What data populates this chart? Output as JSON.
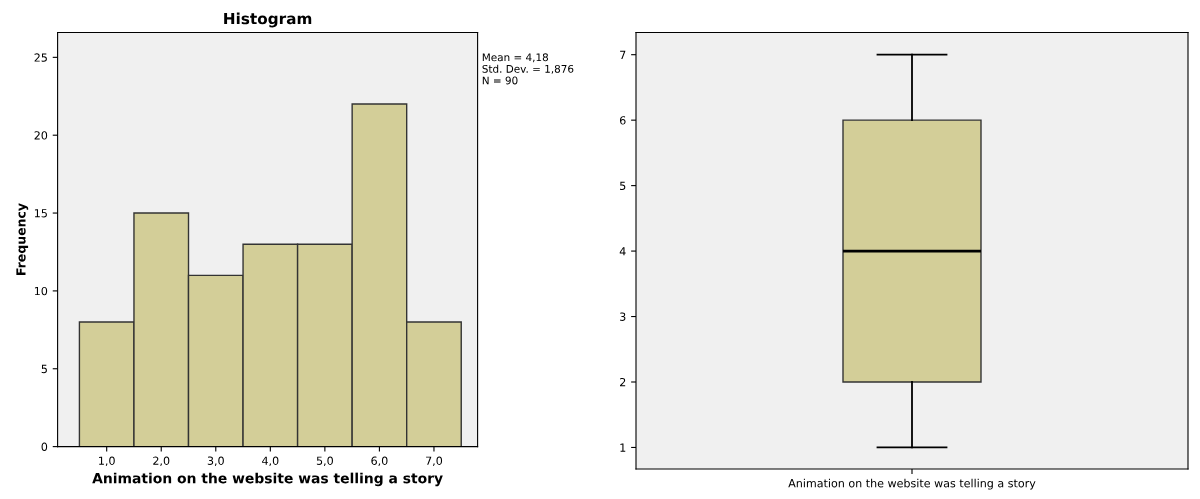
{
  "chart_data": [
    {
      "type": "histogram",
      "title": "Histogram",
      "xlabel": "Animation on the website was telling a story",
      "ylabel": "Frequency",
      "bins": [
        0.5,
        1.5,
        2.5,
        3.5,
        4.5,
        5.5,
        6.5,
        7.5
      ],
      "values": [
        8,
        15,
        11,
        13,
        13,
        22,
        8
      ],
      "color": "#d3ce98",
      "xlim": [
        0.1,
        7.8
      ],
      "xticks": [
        {
          "value": 1,
          "label": "1,0"
        },
        {
          "value": 2,
          "label": "2,0"
        },
        {
          "value": 3,
          "label": "3,0"
        },
        {
          "value": 4,
          "label": "4,0"
        },
        {
          "value": 5,
          "label": "5,0"
        },
        {
          "value": 6,
          "label": "6,0"
        },
        {
          "value": 7,
          "label": "7,0"
        }
      ],
      "ylim": [
        0,
        26.6
      ],
      "yticks": [
        0,
        5,
        10,
        15,
        20,
        25
      ],
      "annotations": [
        "Mean = 4,18",
        "Std. Dev. = 1,876",
        "N = 90"
      ]
    },
    {
      "type": "box",
      "categories": [
        "Animation on the website was telling a story"
      ],
      "color": "#d3ce98",
      "boxes": [
        {
          "low": 1,
          "q1": 2,
          "median": 4,
          "q3": 6,
          "high": 7
        }
      ],
      "ylim": [
        0.67,
        7.34
      ],
      "yticks": [
        1,
        2,
        3,
        4,
        5,
        6,
        7
      ]
    }
  ]
}
